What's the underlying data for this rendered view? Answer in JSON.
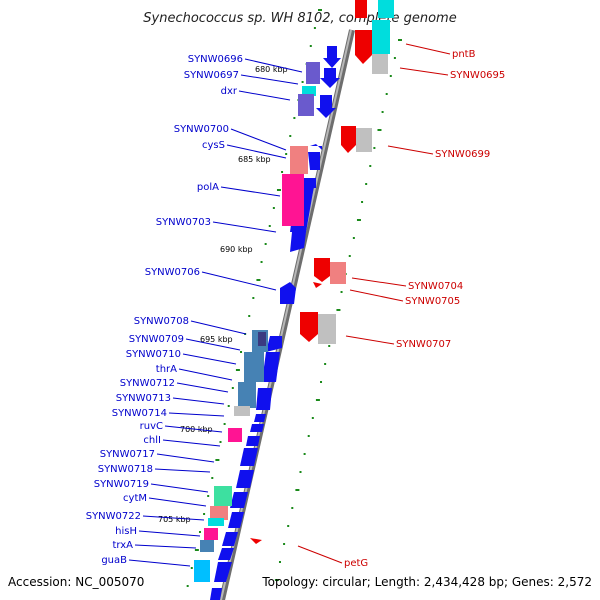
{
  "title": "Synechococcus sp. WH 8102, complete genome",
  "footer": {
    "accession": "Accession: NC_005070",
    "topology": "Topology: circular; Length: 2,434,428 bp; Genes: 2,572"
  },
  "scale_labels": [
    "680 kbp",
    "685 kbp",
    "690 kbp",
    "695 kbp",
    "700 kbp",
    "705 kbp"
  ],
  "left_genes": [
    "SYNW0696",
    "SYNW0697",
    "dxr",
    "SYNW0700",
    "cysS",
    "polA",
    "SYNW0703",
    "SYNW0706",
    "SYNW0708",
    "SYNW0709",
    "SYNW0710",
    "thrA",
    "SYNW0712",
    "SYNW0713",
    "SYNW0714",
    "ruvC",
    "chlI",
    "SYNW0717",
    "SYNW0718",
    "SYNW0719",
    "cytM",
    "SYNW0722",
    "hisH",
    "trxA",
    "guaB"
  ],
  "right_genes": [
    "pntB",
    "SYNW0695",
    "SYNW0699",
    "SYNW0704",
    "SYNW0705",
    "SYNW0707",
    "petG"
  ],
  "colors": {
    "left_label": "#0000cc",
    "right_label": "#cc0000",
    "forward_gene": "#1010ee",
    "reverse_gene": "#ee0000",
    "backbone": "#8a8a8a",
    "tick": "#1a8a1a"
  }
}
